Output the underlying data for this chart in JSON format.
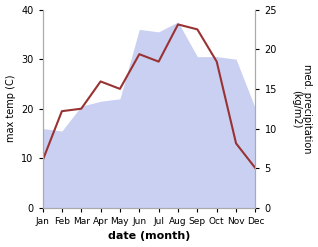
{
  "months": [
    "Jan",
    "Feb",
    "Mar",
    "Apr",
    "May",
    "Jun",
    "Jul",
    "Aug",
    "Sep",
    "Oct",
    "Nov",
    "Dec"
  ],
  "max_temp": [
    9.5,
    19.5,
    20.0,
    25.5,
    24.0,
    31.0,
    29.5,
    37.0,
    36.0,
    29.5,
    13.0,
    8.0
  ],
  "precipitation_left": [
    16.0,
    15.5,
    20.5,
    21.5,
    22.0,
    36.0,
    35.5,
    37.5,
    30.5,
    30.5,
    30.0,
    20.0
  ],
  "temp_color": "#993333",
  "precip_fill_color": "#c0c8f0",
  "precip_fill_alpha": 0.85,
  "xlabel": "date (month)",
  "ylabel_left": "max temp (C)",
  "ylabel_right": "med. precipitation\n(kg/m2)",
  "ylim_left": [
    0,
    40
  ],
  "ylim_right": [
    0,
    25
  ],
  "yticks_left": [
    0,
    10,
    20,
    30,
    40
  ],
  "yticks_right": [
    0,
    5,
    10,
    15,
    20,
    25
  ],
  "background_color": "#ffffff"
}
